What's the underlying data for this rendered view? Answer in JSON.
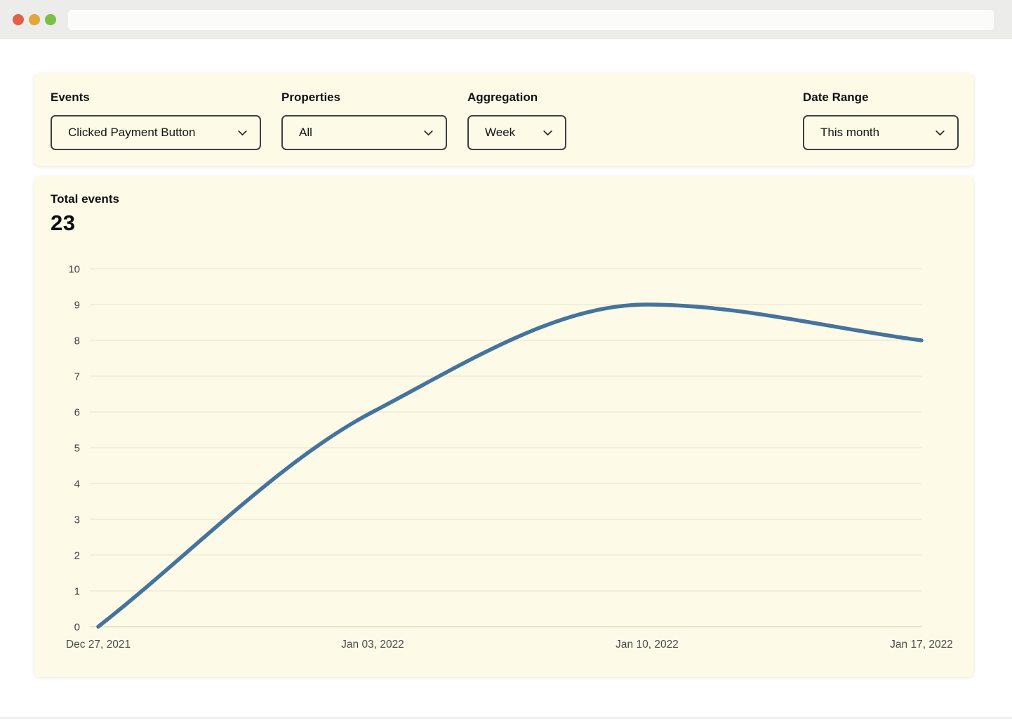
{
  "browser": {
    "traffic_lights": [
      "close",
      "minimize",
      "zoom"
    ],
    "url_value": ""
  },
  "filters": [
    {
      "label": "Events",
      "value": "Clicked Payment Button"
    },
    {
      "label": "Properties",
      "value": "All"
    },
    {
      "label": "Aggregation",
      "value": "Week"
    },
    {
      "label": "Date Range",
      "value": "This month"
    }
  ],
  "summary": {
    "label": "Total events",
    "value": "23"
  },
  "chart_data": {
    "type": "line",
    "x": [
      "Dec 27, 2021",
      "Jan 03, 2022",
      "Jan 10, 2022",
      "Jan 17, 2022"
    ],
    "values": [
      0,
      6,
      9,
      8
    ],
    "title": "",
    "xlabel": "",
    "ylabel": "",
    "ylim": [
      0,
      10
    ],
    "yticks": [
      0,
      1,
      2,
      3,
      4,
      5,
      6,
      7,
      8,
      9,
      10
    ],
    "grid": true,
    "legend": "none",
    "curve": "monotone",
    "line_color": "#44749D",
    "gridline_color": "#F4EED8",
    "zeroline_color": "#EAE2C8",
    "tick_color": "#414141"
  }
}
